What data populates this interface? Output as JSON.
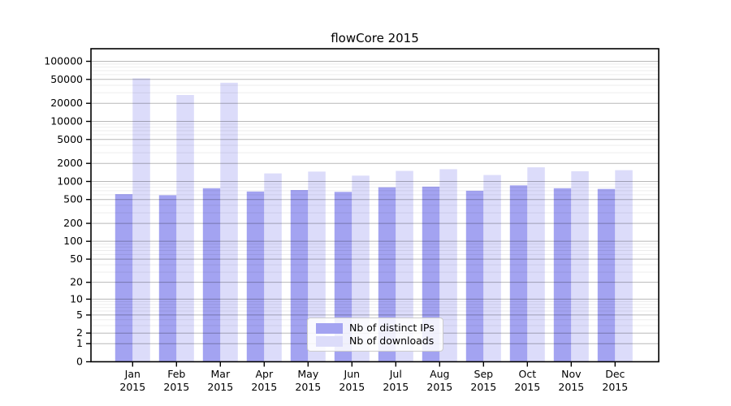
{
  "chart_data": {
    "type": "bar",
    "title": "flowCore 2015",
    "categories": [
      "Jan",
      "Feb",
      "Mar",
      "Apr",
      "May",
      "Jun",
      "Jul",
      "Aug",
      "Sep",
      "Oct",
      "Nov",
      "Dec"
    ],
    "x_sublabel": "2015",
    "series": [
      {
        "name": "Nb of distinct IPs",
        "color": "#a3a3f1",
        "values": [
          615,
          590,
          770,
          680,
          720,
          670,
          800,
          820,
          700,
          860,
          770,
          750
        ]
      },
      {
        "name": "Nb of downloads",
        "color": "#dcdcfa",
        "values": [
          52000,
          27500,
          44000,
          1360,
          1460,
          1250,
          1500,
          1600,
          1280,
          1720,
          1480,
          1540
        ]
      }
    ],
    "yscale": "log1p",
    "ylim": [
      0,
      160000
    ],
    "yticks": [
      0,
      1,
      2,
      5,
      10,
      20,
      50,
      100,
      200,
      500,
      1000,
      2000,
      5000,
      10000,
      20000,
      50000,
      100000
    ],
    "grid": true,
    "legend_position": "lower center inside",
    "colors": {
      "axis": "#000000",
      "major_grid": "rgba(0,0,0,0.28)",
      "minor_grid": "rgba(0,0,0,0.07)",
      "background": "#ffffff"
    }
  }
}
